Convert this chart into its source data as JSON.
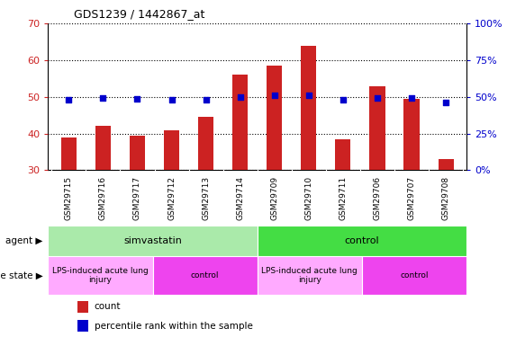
{
  "title": "GDS1239 / 1442867_at",
  "samples": [
    "GSM29715",
    "GSM29716",
    "GSM29717",
    "GSM29712",
    "GSM29713",
    "GSM29714",
    "GSM29709",
    "GSM29710",
    "GSM29711",
    "GSM29706",
    "GSM29707",
    "GSM29708"
  ],
  "counts": [
    39,
    42,
    39.5,
    41,
    44.5,
    56,
    58.5,
    64,
    38.5,
    53,
    49.5,
    33
  ],
  "percentiles": [
    48,
    49,
    48.5,
    48,
    48,
    50,
    51,
    51,
    48,
    49,
    49,
    46
  ],
  "ylim_left": [
    30,
    70
  ],
  "ylim_right": [
    0,
    100
  ],
  "yticks_left": [
    30,
    40,
    50,
    60,
    70
  ],
  "yticks_right": [
    0,
    25,
    50,
    75,
    100
  ],
  "bar_color": "#cc2222",
  "dot_color": "#0000cc",
  "agent_groups": [
    {
      "label": "simvastatin",
      "start": 0,
      "end": 6,
      "color": "#aaeaaa"
    },
    {
      "label": "control",
      "start": 6,
      "end": 12,
      "color": "#44dd44"
    }
  ],
  "disease_groups": [
    {
      "label": "LPS-induced acute lung\ninjury",
      "start": 0,
      "end": 3,
      "color": "#ffaaff"
    },
    {
      "label": "control",
      "start": 3,
      "end": 6,
      "color": "#ee44ee"
    },
    {
      "label": "LPS-induced acute lung\ninjury",
      "start": 6,
      "end": 9,
      "color": "#ffaaff"
    },
    {
      "label": "control",
      "start": 9,
      "end": 12,
      "color": "#ee44ee"
    }
  ],
  "xtick_bg_color": "#cccccc",
  "legend_count_color": "#cc2222",
  "legend_dot_color": "#0000cc",
  "bar_width": 0.45
}
